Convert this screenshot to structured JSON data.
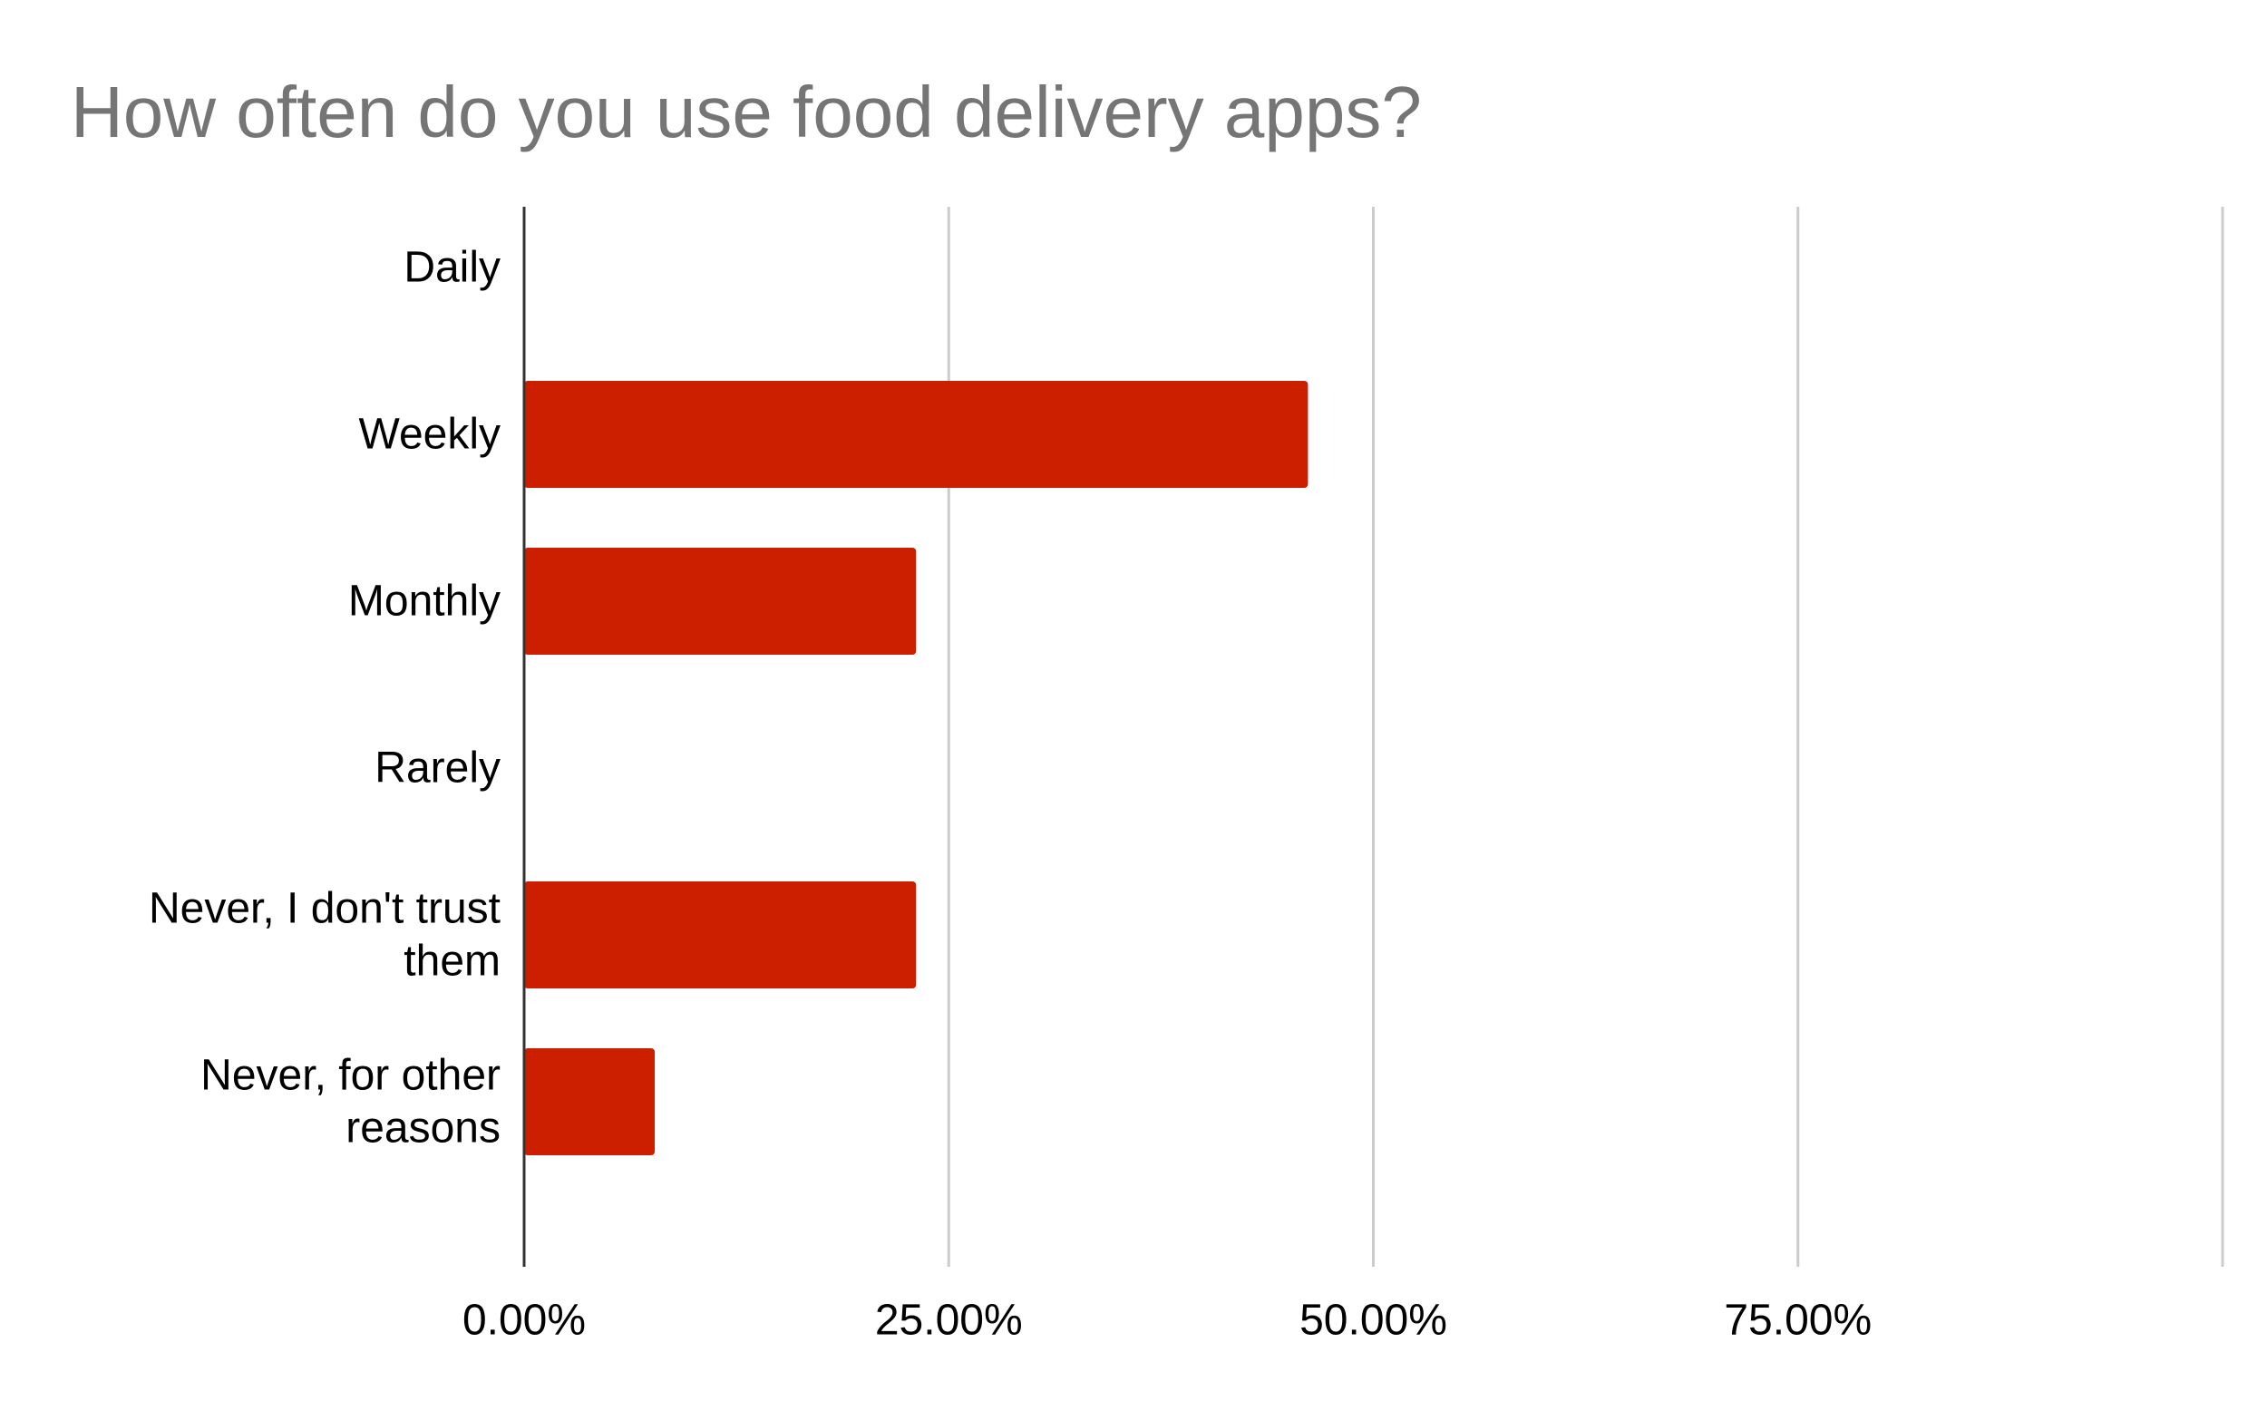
{
  "chart_data": {
    "type": "bar",
    "orientation": "horizontal",
    "title": "How often do you use food delivery apps?",
    "xlabel": "",
    "ylabel": "",
    "categories": [
      [
        "Daily"
      ],
      [
        "Weekly"
      ],
      [
        "Monthly"
      ],
      [
        "Rarely"
      ],
      [
        "Never, I don't trust",
        "them"
      ],
      [
        "Never, for other",
        "reasons"
      ]
    ],
    "values": [
      0,
      46.15,
      23.08,
      0,
      23.08,
      7.69
    ],
    "value_unit": "%",
    "xlim": [
      0,
      100
    ],
    "x_ticks": [
      0,
      25,
      50,
      75,
      100
    ],
    "x_tick_labels": [
      "0.00%",
      "25.00%",
      "50.00%",
      "75.00%",
      ""
    ],
    "bar_color": "#cc1f00",
    "gridline_color": "#cccccc",
    "axis_color": "#333333",
    "grid": true,
    "legend": "none"
  }
}
